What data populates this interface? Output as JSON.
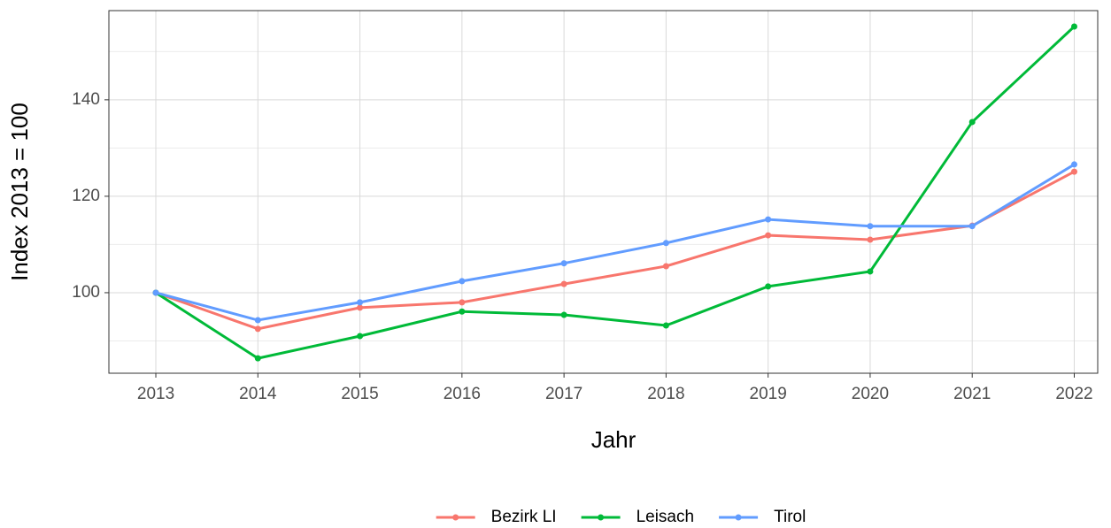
{
  "chart_data": {
    "type": "line",
    "x_label": "Jahr",
    "y_label": "Index  2013  = 100",
    "x": [
      2013,
      2014,
      2015,
      2016,
      2017,
      2018,
      2019,
      2020,
      2021,
      2022
    ],
    "series": [
      {
        "name": "Bezirk LI",
        "color": "#F8766D",
        "values": [
          100,
          92.5,
          96.9,
          98.0,
          101.8,
          105.5,
          111.9,
          111.0,
          113.9,
          125.1
        ]
      },
      {
        "name": "Leisach",
        "color": "#00BA38",
        "values": [
          100,
          86.4,
          91.0,
          96.1,
          95.4,
          93.2,
          101.3,
          104.4,
          135.4,
          155.2
        ]
      },
      {
        "name": "Tirol",
        "color": "#619CFF",
        "values": [
          100,
          94.3,
          98.0,
          102.4,
          106.1,
          110.3,
          115.2,
          113.8,
          113.8,
          126.6
        ]
      }
    ],
    "xlim": [
      2012.54,
      2022.23
    ],
    "xticks": [
      2013,
      2014,
      2015,
      2016,
      2017,
      2018,
      2019,
      2020,
      2021,
      2022
    ],
    "ylim": [
      83.3,
      158.5
    ],
    "yticks": [
      100,
      120,
      140
    ],
    "y_minor_ticks": [
      90,
      110,
      130,
      150
    ],
    "grid": true,
    "legend": "bottom"
  }
}
